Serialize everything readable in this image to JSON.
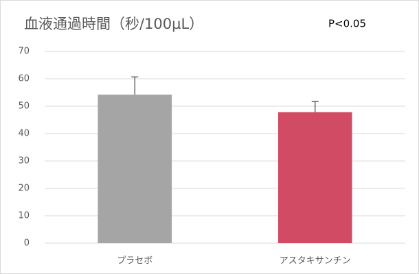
{
  "chart_data": {
    "type": "bar",
    "title": "血液通過時間（秒/100µL）",
    "annotation": "P<0.05",
    "categories": [
      "プラセボ",
      "アスタキサンチン"
    ],
    "values": [
      54.2,
      47.8
    ],
    "errors": [
      6.5,
      3.9
    ],
    "colors": [
      "#a5a5a5",
      "#d24b64"
    ],
    "ylim": [
      0,
      70
    ],
    "yticks": [
      0,
      10,
      20,
      30,
      40,
      50,
      60,
      70
    ],
    "grid": true
  }
}
